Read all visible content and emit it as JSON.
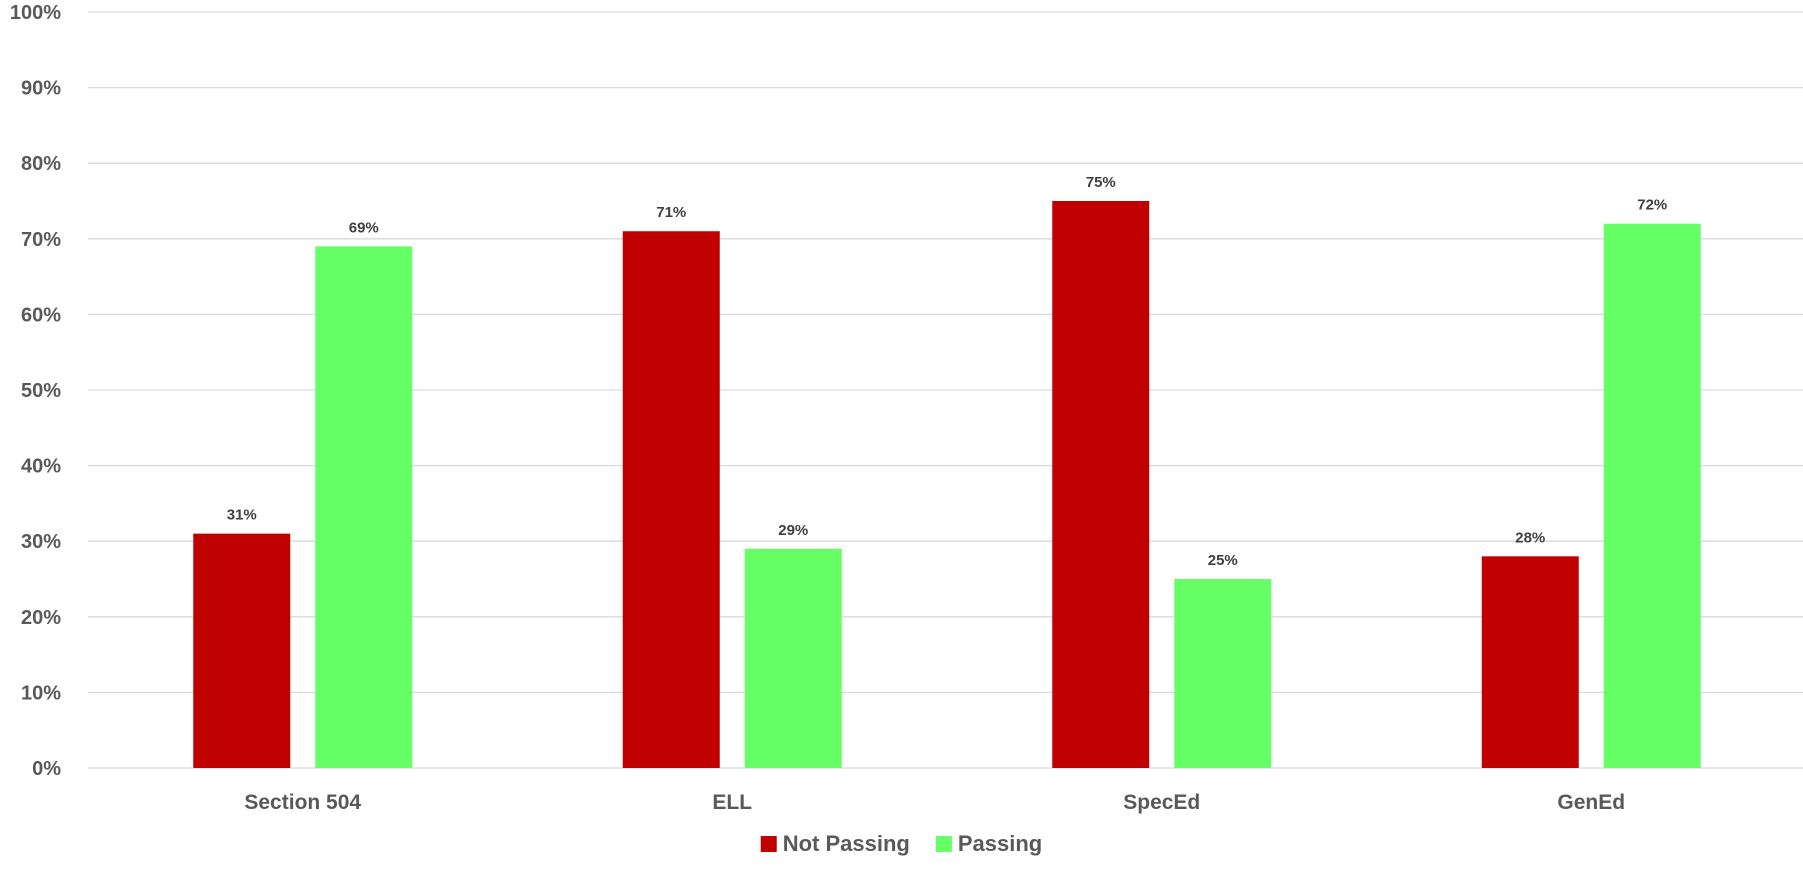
{
  "chart_data": {
    "type": "bar",
    "categories": [
      "Section 504",
      "ELL",
      "SpecEd",
      "GenEd"
    ],
    "series": [
      {
        "name": "Not Passing",
        "color": "#c00000",
        "values": [
          0.31,
          0.71,
          0.75,
          0.28
        ],
        "labels": [
          "31%",
          "71%",
          "75%",
          "28%"
        ]
      },
      {
        "name": "Passing",
        "color": "#66ff66",
        "values": [
          0.69,
          0.29,
          0.25,
          0.72
        ],
        "labels": [
          "69%",
          "29%",
          "25%",
          "72%"
        ]
      }
    ],
    "ylim": [
      0,
      1
    ],
    "yticks": [
      0,
      0.1,
      0.2,
      0.3,
      0.4,
      0.5,
      0.6,
      0.7,
      0.8,
      0.9,
      1.0
    ],
    "ytick_labels": [
      "0%",
      "10%",
      "20%",
      "30%",
      "40%",
      "50%",
      "60%",
      "70%",
      "80%",
      "90%",
      "100%"
    ],
    "grid": true,
    "legend_position": "bottom"
  }
}
